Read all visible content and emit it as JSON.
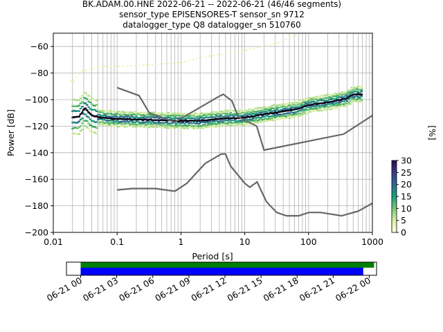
{
  "figure": {
    "title_lines": [
      "BK.ADAM.00.HNE   2022-06-21 -- 2022-06-21  (46/46 segments)",
      "sensor_type EPISENSORES-T sensor_sn 9712",
      "datalogger_type Q8 datalogger_sn 510760"
    ]
  },
  "chart_data": [
    {
      "type": "heatmap",
      "xlabel": "Period [s]",
      "ylabel": "Power [dB]",
      "xscale": "log",
      "xlim": [
        0.01,
        1000
      ],
      "ylim": [
        -200,
        -50
      ],
      "x_ticks": [
        {
          "value": 0.01,
          "label": "0.01"
        },
        {
          "value": 0.1,
          "label": "0.1"
        },
        {
          "value": 1,
          "label": "1"
        },
        {
          "value": 10,
          "label": "10"
        },
        {
          "value": 100,
          "label": "100"
        },
        {
          "value": 1000,
          "label": "1000"
        }
      ],
      "y_ticks": [
        {
          "value": -60,
          "label": "−60"
        },
        {
          "value": -80,
          "label": "−80"
        },
        {
          "value": -100,
          "label": "−100"
        },
        {
          "value": -120,
          "label": "−120"
        },
        {
          "value": -140,
          "label": "−140"
        },
        {
          "value": -160,
          "label": "−160"
        },
        {
          "value": -180,
          "label": "−180"
        },
        {
          "value": -200,
          "label": "−200"
        }
      ],
      "grid": true,
      "colorbar": {
        "label": "[%]",
        "ticks": [
          "0",
          "5",
          "10",
          "15",
          "20",
          "25",
          "30"
        ],
        "range": [
          0,
          30
        ],
        "colors": [
          "#ffffe5",
          "#d9f0a3",
          "#78c679",
          "#1a9e7a",
          "#2e6a8e",
          "#3b3b8a",
          "#2d0a48"
        ]
      },
      "series": [
        {
          "name": "",
          "role": "mean/mode line",
          "color": "#000000",
          "x": [
            0.02,
            0.025,
            0.028,
            0.03,
            0.032,
            0.035,
            0.04,
            0.05,
            0.07,
            0.1,
            0.2,
            0.5,
            0.8,
            1,
            2,
            3,
            5,
            8,
            12,
            20,
            40,
            70,
            100,
            200,
            400,
            500,
            700
          ],
          "y": [
            -113,
            -113,
            -110,
            -107,
            -107,
            -109,
            -112,
            -113,
            -114,
            -114.5,
            -115,
            -115.5,
            -116,
            -116,
            -116,
            -115,
            -114,
            -114,
            -113,
            -111,
            -109,
            -107,
            -104,
            -102,
            -99,
            -96,
            -96
          ]
        },
        {
          "name": "",
          "role": "NHNM",
          "color": "#666666",
          "x": [
            0.1,
            0.22,
            0.32,
            0.8,
            3.8,
            4.6,
            6.3,
            7.9,
            15.4,
            20,
            354.8,
            1000
          ],
          "y": [
            -91,
            -97,
            -110,
            -117,
            -98,
            -96,
            -101,
            -113,
            -120,
            -138,
            -126,
            -112
          ]
        },
        {
          "name": "",
          "role": "NLNM",
          "color": "#666666",
          "x": [
            0.1,
            0.17,
            0.4,
            0.8,
            1.24,
            2.4,
            4.3,
            5,
            6,
            10,
            12,
            15.6,
            21.9,
            31.6,
            45,
            70,
            101,
            154,
            328,
            600,
            1000
          ],
          "y": [
            -168,
            -167,
            -167,
            -169,
            -163,
            -148,
            -141,
            -141,
            -150,
            -163,
            -166,
            -162,
            -177,
            -185,
            -187.5,
            -187.5,
            -185,
            -185,
            -187.5,
            -184,
            -178
          ]
        },
        {
          "name": "",
          "role": "upper scattered PSD band",
          "color": "#e6f2b8",
          "x": [
            0.02,
            0.03,
            0.06,
            0.1,
            0.3,
            1,
            3,
            10,
            30,
            60
          ],
          "y": [
            -86,
            -78,
            -75,
            -75,
            -74,
            -72,
            -67,
            -63,
            -58,
            -52
          ]
        }
      ]
    },
    {
      "type": "bar",
      "role": "data availability timeline",
      "x_ticks": [
        "06-21 00",
        "06-21 03",
        "06-21 06",
        "06-21 09",
        "06-21 12",
        "06-21 15",
        "06-21 18",
        "06-21 21",
        "06-22 00"
      ],
      "bars": [
        {
          "color": "#008000",
          "start_hours": 0,
          "end_hours": 24.4
        },
        {
          "color": "#0000ff",
          "start_hours": 0,
          "end_hours": 23.5
        }
      ]
    }
  ]
}
